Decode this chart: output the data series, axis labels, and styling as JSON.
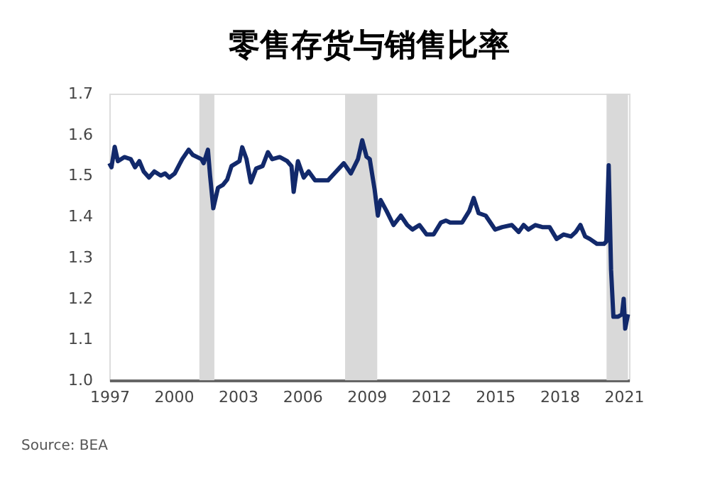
{
  "chart_data": {
    "type": "line",
    "title": "零售存货与销售比率",
    "x": [
      1997.0,
      1997.1,
      1997.25,
      1997.4,
      1997.7,
      1998.0,
      1998.2,
      1998.4,
      1998.6,
      1998.85,
      1999.1,
      1999.4,
      1999.6,
      1999.8,
      2000.05,
      2000.4,
      2000.7,
      2000.9,
      2001.3,
      2001.4,
      2001.6,
      2001.7,
      2001.85,
      2002.07,
      2002.3,
      2002.5,
      2002.7,
      2003.07,
      2003.2,
      2003.4,
      2003.6,
      2003.85,
      2004.15,
      2004.4,
      2004.6,
      2004.95,
      2005.3,
      2005.5,
      2005.6,
      2005.8,
      2006.07,
      2006.3,
      2006.6,
      2007.2,
      2007.5,
      2007.94,
      2008.27,
      2008.6,
      2008.8,
      2009.0,
      2009.15,
      2009.38,
      2009.53,
      2009.66,
      2009.93,
      2010.26,
      2010.6,
      2010.9,
      2011.14,
      2011.47,
      2011.8,
      2012.13,
      2012.47,
      2012.7,
      2012.9,
      2013.46,
      2013.8,
      2014.0,
      2014.23,
      2014.56,
      2014.78,
      2015.0,
      2015.34,
      2015.78,
      2016.1,
      2016.33,
      2016.55,
      2016.88,
      2017.2,
      2017.54,
      2017.87,
      2018.2,
      2018.54,
      2018.76,
      2018.98,
      2019.2,
      2019.42,
      2019.75,
      2020.08,
      2020.19,
      2020.3,
      2020.41,
      2020.52,
      2020.74,
      2020.92,
      2021.0,
      2021.07,
      2021.2
    ],
    "series": [
      {
        "color": "#12296b",
        "values": [
          1.53,
          1.52,
          1.57,
          1.535,
          1.545,
          1.54,
          1.52,
          1.535,
          1.51,
          1.495,
          1.51,
          1.5,
          1.505,
          1.495,
          1.505,
          1.54,
          1.563,
          1.55,
          1.54,
          1.53,
          1.563,
          1.5,
          1.42,
          1.47,
          1.477,
          1.49,
          1.523,
          1.535,
          1.569,
          1.54,
          1.483,
          1.517,
          1.523,
          1.557,
          1.54,
          1.545,
          1.535,
          1.523,
          1.46,
          1.535,
          1.495,
          1.51,
          1.488,
          1.488,
          1.505,
          1.53,
          1.505,
          1.54,
          1.586,
          1.546,
          1.54,
          1.465,
          1.402,
          1.44,
          1.414,
          1.379,
          1.402,
          1.379,
          1.368,
          1.379,
          1.356,
          1.356,
          1.385,
          1.39,
          1.385,
          1.385,
          1.414,
          1.445,
          1.408,
          1.402,
          1.385,
          1.368,
          1.374,
          1.379,
          1.362,
          1.379,
          1.368,
          1.379,
          1.374,
          1.374,
          1.345,
          1.356,
          1.351,
          1.362,
          1.379,
          1.351,
          1.345,
          1.333,
          1.333,
          1.339,
          1.525,
          1.27,
          1.155,
          1.155,
          1.161,
          1.199,
          1.126,
          1.161
        ]
      }
    ],
    "xlim": [
      1997,
      2021.25
    ],
    "xticks": [
      1997,
      2000,
      2003,
      2006,
      2009,
      2012,
      2015,
      2018,
      2021
    ],
    "ylim": [
      1.0,
      1.7
    ],
    "yticks": [
      {
        "value": 1.0,
        "label": "1.0"
      },
      1.1,
      1.2,
      1.3,
      1.4,
      1.5,
      1.6,
      1.7
    ],
    "bands": [
      {
        "axis": "x",
        "from": 2001.2,
        "to": 2001.9,
        "color": "#d9d9d9"
      },
      {
        "axis": "x",
        "from": 2008.0,
        "to": 2009.5,
        "color": "#d9d9d9"
      },
      {
        "axis": "x",
        "from": 2020.2,
        "to": 2021.2,
        "color": "#d9d9d9"
      }
    ],
    "grid": false,
    "line_style": "solid",
    "annotations": [
      "Source: BEA"
    ]
  }
}
